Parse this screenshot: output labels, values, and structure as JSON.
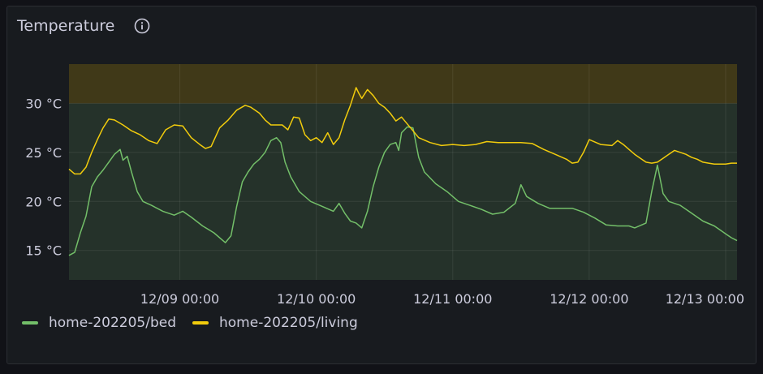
{
  "panel": {
    "title": "Temperature",
    "info_icon": "info-circle-icon"
  },
  "chart_data": {
    "type": "line",
    "title": "Temperature",
    "unit": "°C",
    "ylim": [
      12,
      34
    ],
    "xlim": [
      "12/08 04:30",
      "12/13 02:00"
    ],
    "y_ticks": [
      "15 °C",
      "20 °C",
      "25 °C",
      "30 °C"
    ],
    "y_tick_values": [
      15,
      20,
      25,
      30
    ],
    "x_ticks": [
      "12/09 00:00",
      "12/10 00:00",
      "12/11 00:00",
      "12/12 00:00",
      "12/13 00:00"
    ],
    "x_tick_values": [
      "12/09 00:00",
      "12/10 00:00",
      "12/11 00:00",
      "12/12 00:00",
      "12/13 00:00"
    ],
    "thresholds": [
      {
        "from": 12,
        "to": 30,
        "color": "#73bf69"
      },
      {
        "from": 30,
        "to": 34,
        "color": "#e0b400"
      }
    ],
    "grid": true,
    "legend": "bottom-left",
    "series": [
      {
        "name": "home-202205/bed",
        "color": "#73bf69",
        "points": [
          [
            "12/08 04:30",
            14.5
          ],
          [
            "12/08 05:30",
            14.8
          ],
          [
            "12/08 06:30",
            16.8
          ],
          [
            "12/08 07:30",
            18.5
          ],
          [
            "12/08 08:30",
            21.5
          ],
          [
            "12/08 09:30",
            22.5
          ],
          [
            "12/08 10:30",
            23.2
          ],
          [
            "12/08 11:30",
            24.0
          ],
          [
            "12/08 12:30",
            24.8
          ],
          [
            "12/08 13:30",
            25.3
          ],
          [
            "12/08 14:00",
            24.2
          ],
          [
            "12/08 14:45",
            24.6
          ],
          [
            "12/08 15:30",
            23.0
          ],
          [
            "12/08 16:30",
            21.0
          ],
          [
            "12/08 17:30",
            20.0
          ],
          [
            "12/08 19:00",
            19.6
          ],
          [
            "12/08 21:00",
            19.0
          ],
          [
            "12/08 23:00",
            18.6
          ],
          [
            "12/09 00:30",
            19.0
          ],
          [
            "12/09 02:00",
            18.4
          ],
          [
            "12/09 04:00",
            17.5
          ],
          [
            "12/09 06:00",
            16.8
          ],
          [
            "12/09 08:00",
            15.8
          ],
          [
            "12/09 09:00",
            16.5
          ],
          [
            "12/09 10:00",
            19.5
          ],
          [
            "12/09 11:00",
            22.0
          ],
          [
            "12/09 12:00",
            23.0
          ],
          [
            "12/09 13:00",
            23.8
          ],
          [
            "12/09 14:00",
            24.3
          ],
          [
            "12/09 15:00",
            25.0
          ],
          [
            "12/09 16:00",
            26.2
          ],
          [
            "12/09 17:00",
            26.5
          ],
          [
            "12/09 17:45",
            26.0
          ],
          [
            "12/09 18:30",
            24.0
          ],
          [
            "12/09 19:30",
            22.5
          ],
          [
            "12/09 21:00",
            21.0
          ],
          [
            "12/09 23:00",
            20.0
          ],
          [
            "12/10 01:00",
            19.5
          ],
          [
            "12/10 03:00",
            19.0
          ],
          [
            "12/10 04:00",
            19.8
          ],
          [
            "12/10 05:00",
            18.8
          ],
          [
            "12/10 06:00",
            18.0
          ],
          [
            "12/10 07:00",
            17.8
          ],
          [
            "12/10 08:00",
            17.3
          ],
          [
            "12/10 09:00",
            19.0
          ],
          [
            "12/10 10:00",
            21.5
          ],
          [
            "12/10 11:00",
            23.5
          ],
          [
            "12/10 12:00",
            25.0
          ],
          [
            "12/10 13:00",
            25.8
          ],
          [
            "12/10 14:00",
            26.0
          ],
          [
            "12/10 14:30",
            25.2
          ],
          [
            "12/10 15:00",
            27.0
          ],
          [
            "12/10 16:00",
            27.6
          ],
          [
            "12/10 17:00",
            27.5
          ],
          [
            "12/10 18:00",
            24.5
          ],
          [
            "12/10 19:00",
            23.0
          ],
          [
            "12/10 21:00",
            21.8
          ],
          [
            "12/10 23:00",
            21.0
          ],
          [
            "12/11 01:00",
            20.0
          ],
          [
            "12/11 03:00",
            19.6
          ],
          [
            "12/11 05:00",
            19.2
          ],
          [
            "12/11 07:00",
            18.7
          ],
          [
            "12/11 09:00",
            18.9
          ],
          [
            "12/11 11:00",
            19.8
          ],
          [
            "12/11 12:00",
            21.7
          ],
          [
            "12/11 13:00",
            20.5
          ],
          [
            "12/11 15:00",
            19.8
          ],
          [
            "12/11 17:00",
            19.3
          ],
          [
            "12/11 19:00",
            19.3
          ],
          [
            "12/11 21:00",
            19.3
          ],
          [
            "12/11 23:00",
            18.9
          ],
          [
            "12/12 01:00",
            18.3
          ],
          [
            "12/12 03:00",
            17.6
          ],
          [
            "12/12 05:00",
            17.5
          ],
          [
            "12/12 07:00",
            17.5
          ],
          [
            "12/12 08:00",
            17.3
          ],
          [
            "12/12 10:00",
            17.8
          ],
          [
            "12/12 11:00",
            21.0
          ],
          [
            "12/12 12:00",
            23.7
          ],
          [
            "12/12 13:00",
            20.8
          ],
          [
            "12/12 14:00",
            20.0
          ],
          [
            "12/12 16:00",
            19.6
          ],
          [
            "12/12 18:00",
            18.8
          ],
          [
            "12/12 20:00",
            18.0
          ],
          [
            "12/12 22:00",
            17.5
          ],
          [
            "12/13 00:00",
            16.7
          ],
          [
            "12/13 01:00",
            16.3
          ],
          [
            "12/13 02:00",
            16.0
          ]
        ]
      },
      {
        "name": "home-202205/living",
        "color": "#f2cc0c",
        "points": [
          [
            "12/08 04:30",
            23.3
          ],
          [
            "12/08 05:30",
            22.8
          ],
          [
            "12/08 06:30",
            22.8
          ],
          [
            "12/08 07:30",
            23.5
          ],
          [
            "12/08 08:30",
            25.0
          ],
          [
            "12/08 09:30",
            26.3
          ],
          [
            "12/08 10:30",
            27.5
          ],
          [
            "12/08 11:30",
            28.4
          ],
          [
            "12/08 12:30",
            28.3
          ],
          [
            "12/08 14:00",
            27.8
          ],
          [
            "12/08 15:30",
            27.2
          ],
          [
            "12/08 17:00",
            26.8
          ],
          [
            "12/08 18:30",
            26.2
          ],
          [
            "12/08 20:00",
            25.9
          ],
          [
            "12/08 21:30",
            27.3
          ],
          [
            "12/08 23:00",
            27.8
          ],
          [
            "12/09 00:30",
            27.7
          ],
          [
            "12/09 02:00",
            26.5
          ],
          [
            "12/09 03:30",
            25.8
          ],
          [
            "12/09 04:30",
            25.4
          ],
          [
            "12/09 05:30",
            25.6
          ],
          [
            "12/09 07:00",
            27.5
          ],
          [
            "12/09 08:30",
            28.3
          ],
          [
            "12/09 10:00",
            29.3
          ],
          [
            "12/09 11:30",
            29.8
          ],
          [
            "12/09 12:30",
            29.6
          ],
          [
            "12/09 14:00",
            29.0
          ],
          [
            "12/09 15:00",
            28.3
          ],
          [
            "12/09 16:00",
            27.8
          ],
          [
            "12/09 18:00",
            27.8
          ],
          [
            "12/09 19:00",
            27.3
          ],
          [
            "12/09 20:00",
            28.6
          ],
          [
            "12/09 21:00",
            28.5
          ],
          [
            "12/09 22:00",
            26.8
          ],
          [
            "12/09 23:00",
            26.2
          ],
          [
            "12/10 00:00",
            26.5
          ],
          [
            "12/10 01:00",
            26.0
          ],
          [
            "12/10 02:00",
            27.0
          ],
          [
            "12/10 03:00",
            25.8
          ],
          [
            "12/10 04:00",
            26.5
          ],
          [
            "12/10 05:00",
            28.3
          ],
          [
            "12/10 06:00",
            29.8
          ],
          [
            "12/10 07:00",
            31.6
          ],
          [
            "12/10 07:30",
            31.0
          ],
          [
            "12/10 08:00",
            30.5
          ],
          [
            "12/10 09:00",
            31.4
          ],
          [
            "12/10 10:00",
            30.8
          ],
          [
            "12/10 11:00",
            30.0
          ],
          [
            "12/10 12:00",
            29.6
          ],
          [
            "12/10 13:00",
            29.0
          ],
          [
            "12/10 14:00",
            28.2
          ],
          [
            "12/10 15:00",
            28.6
          ],
          [
            "12/10 16:00",
            27.9
          ],
          [
            "12/10 17:00",
            27.2
          ],
          [
            "12/10 18:00",
            26.5
          ],
          [
            "12/10 20:00",
            26.0
          ],
          [
            "12/10 22:00",
            25.7
          ],
          [
            "12/11 00:00",
            25.8
          ],
          [
            "12/11 02:00",
            25.7
          ],
          [
            "12/11 04:00",
            25.8
          ],
          [
            "12/11 06:00",
            26.1
          ],
          [
            "12/11 08:00",
            26.0
          ],
          [
            "12/11 10:00",
            26.0
          ],
          [
            "12/11 12:00",
            26.0
          ],
          [
            "12/11 14:00",
            25.9
          ],
          [
            "12/11 16:00",
            25.3
          ],
          [
            "12/11 18:00",
            24.8
          ],
          [
            "12/11 20:00",
            24.3
          ],
          [
            "12/11 21:00",
            23.9
          ],
          [
            "12/11 22:00",
            24.0
          ],
          [
            "12/11 23:00",
            25.0
          ],
          [
            "12/12 00:00",
            26.3
          ],
          [
            "12/12 02:00",
            25.8
          ],
          [
            "12/12 04:00",
            25.7
          ],
          [
            "12/12 05:00",
            26.2
          ],
          [
            "12/12 06:00",
            25.8
          ],
          [
            "12/12 07:00",
            25.3
          ],
          [
            "12/12 08:00",
            24.8
          ],
          [
            "12/12 09:00",
            24.4
          ],
          [
            "12/12 10:00",
            24.0
          ],
          [
            "12/12 11:00",
            23.9
          ],
          [
            "12/12 12:00",
            24.0
          ],
          [
            "12/12 13:00",
            24.4
          ],
          [
            "12/12 14:00",
            24.8
          ],
          [
            "12/12 15:00",
            25.2
          ],
          [
            "12/12 16:00",
            25.0
          ],
          [
            "12/12 17:00",
            24.8
          ],
          [
            "12/12 18:00",
            24.5
          ],
          [
            "12/12 19:00",
            24.3
          ],
          [
            "12/12 20:00",
            24.0
          ],
          [
            "12/12 21:00",
            23.9
          ],
          [
            "12/12 22:00",
            23.8
          ],
          [
            "12/12 23:00",
            23.8
          ],
          [
            "12/13 00:00",
            23.8
          ],
          [
            "12/13 01:00",
            23.9
          ],
          [
            "12/13 02:00",
            23.9
          ]
        ]
      }
    ]
  }
}
